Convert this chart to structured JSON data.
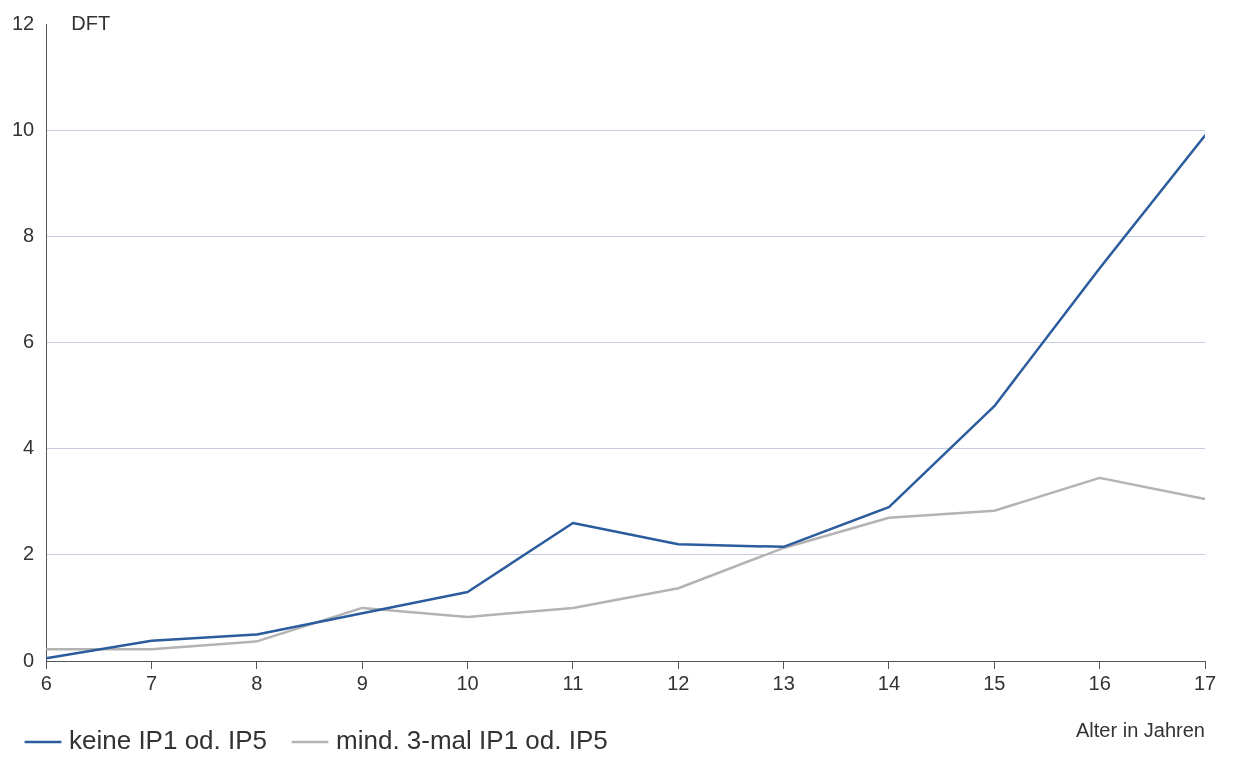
{
  "chart_data": {
    "type": "line",
    "ylabel": "DFT",
    "xlabel": "Alter in Jahren",
    "x": [
      6,
      7,
      8,
      9,
      10,
      11,
      12,
      13,
      14,
      15,
      16,
      17
    ],
    "series": [
      {
        "name": "keine IP1 od. IP5",
        "color": "#2b5c9e",
        "values": [
          0.05,
          0.38,
          0.5,
          0.9,
          1.3,
          2.6,
          2.2,
          2.15,
          2.9,
          4.8,
          7.4,
          9.9
        ]
      },
      {
        "name": "mind. 3-mal IP1 od. IP5",
        "color": "#b3b3b3",
        "values": [
          0.22,
          0.22,
          0.37,
          1.0,
          0.83,
          1.0,
          1.37,
          2.13,
          2.7,
          2.83,
          3.45,
          3.05
        ]
      }
    ],
    "xlim": [
      6,
      17
    ],
    "xticks": [
      6,
      7,
      8,
      9,
      10,
      11,
      12,
      13,
      14,
      15,
      16,
      17
    ],
    "ylim": [
      0,
      12
    ],
    "yticks": [
      0,
      2,
      4,
      6,
      8,
      10,
      12
    ],
    "grid": "y",
    "legend": "bottom",
    "marker": "none",
    "line_style": "solid"
  }
}
